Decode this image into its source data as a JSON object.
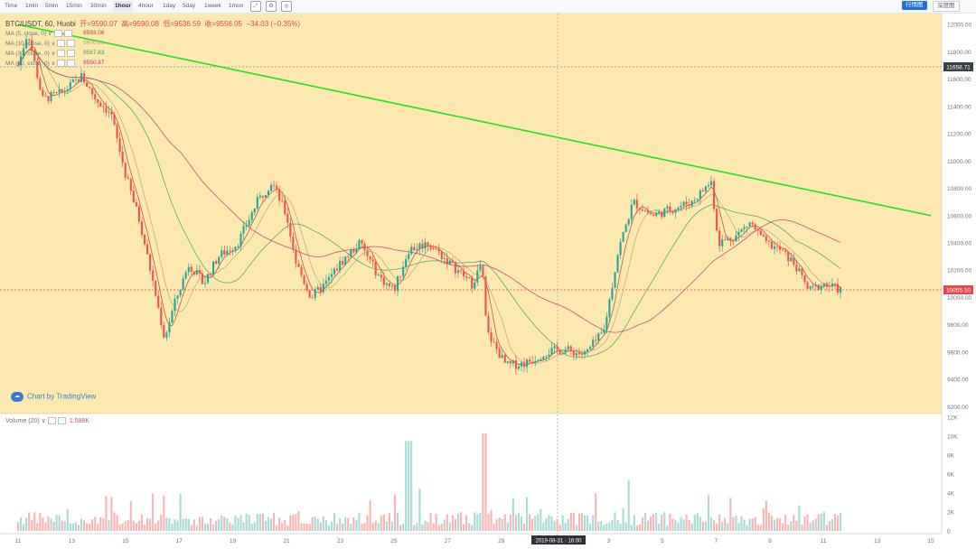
{
  "toolbar": {
    "timeframes": [
      "Time",
      "1min",
      "5min",
      "15min",
      "30min",
      "1hour",
      "4hour",
      "1day",
      "5day",
      "1week",
      "1mon"
    ],
    "active_timeframe": "1hour",
    "buttons": {
      "kline": "行情图",
      "depth": "深度图"
    },
    "icons": [
      "fullscreen-icon",
      "settings-icon",
      "screenshot-icon"
    ]
  },
  "header": {
    "symbol": "BTC/USDT, 60, Huobi",
    "open": "开=9590.07",
    "high": "高=9590.08",
    "low": "低=9536.59",
    "close": "收=9556.05",
    "change": "−34.03 (−0.35%)"
  },
  "ma_legend": [
    {
      "label": "MA (5, close, 0) ∨",
      "value": "9593.06",
      "color": "#c0392b"
    },
    {
      "label": "MA (10, close, 0) ∨",
      "value": "9600.01",
      "color": "#b9a27a"
    },
    {
      "label": "MA (30, close, 0) ∨",
      "value": "9567.83",
      "color": "#3aa05a"
    },
    {
      "label": "MA (60, close, 0) ∨",
      "value": "9550.87",
      "color": "#c0306e"
    }
  ],
  "attribution": "Chart by TradingView",
  "volume_legend": {
    "label": "Volume (20) ∨",
    "value": "1.588K"
  },
  "crosshair_label": "2019-08-31 · 16:00",
  "price_labels": {
    "marker": "11658.71",
    "current": "10055.10"
  },
  "colors": {
    "up": "#26a69a",
    "down": "#ef5350",
    "trendline": "#22e01b",
    "highlight": "#fde9b0"
  },
  "chart_data": {
    "type": "candlestick",
    "timeframe": "1hour",
    "y_range": [
      9150,
      12080
    ],
    "y_ticks": [
      12000,
      11800,
      11600,
      11400,
      11200,
      11000,
      10800,
      10600,
      10400,
      10200,
      10000,
      9800,
      9600,
      9400,
      9200
    ],
    "y_tick_labels": [
      "12000.00",
      "11800.00",
      "11600.00",
      "11400.00",
      "11200.00",
      "11000.00",
      "10800.00",
      "10600.00",
      "10400.00",
      "10200.00",
      "10000.00",
      "9800.00",
      "9600.00",
      "9400.00",
      "9200.00"
    ],
    "x_tick_labels": [
      "11",
      "13",
      "15",
      "17",
      "19",
      "21",
      "23",
      "25",
      "27",
      "29",
      "1",
      "3",
      "5",
      "7",
      "9",
      "11",
      "13",
      "15"
    ],
    "price_path": [
      {
        "x": 0,
        "y": 11700
      },
      {
        "x": 0.4,
        "y": 11950
      },
      {
        "x": 1.0,
        "y": 11450
      },
      {
        "x": 1.8,
        "y": 11500
      },
      {
        "x": 2.6,
        "y": 11620
      },
      {
        "x": 3.2,
        "y": 11450
      },
      {
        "x": 3.8,
        "y": 11350
      },
      {
        "x": 4.4,
        "y": 10900
      },
      {
        "x": 5.0,
        "y": 10550
      },
      {
        "x": 5.6,
        "y": 10050
      },
      {
        "x": 6.0,
        "y": 9700
      },
      {
        "x": 6.4,
        "y": 9950
      },
      {
        "x": 7.0,
        "y": 10250
      },
      {
        "x": 7.6,
        "y": 10100
      },
      {
        "x": 8.2,
        "y": 10300
      },
      {
        "x": 9.0,
        "y": 10400
      },
      {
        "x": 9.8,
        "y": 10700
      },
      {
        "x": 10.4,
        "y": 10850
      },
      {
        "x": 11.0,
        "y": 10600
      },
      {
        "x": 11.4,
        "y": 10250
      },
      {
        "x": 12.0,
        "y": 10000
      },
      {
        "x": 12.6,
        "y": 10100
      },
      {
        "x": 13.2,
        "y": 10250
      },
      {
        "x": 14.0,
        "y": 10400
      },
      {
        "x": 14.8,
        "y": 10150
      },
      {
        "x": 15.4,
        "y": 10050
      },
      {
        "x": 16.0,
        "y": 10350
      },
      {
        "x": 16.8,
        "y": 10400
      },
      {
        "x": 17.4,
        "y": 10300
      },
      {
        "x": 18.0,
        "y": 10200
      },
      {
        "x": 18.6,
        "y": 10100
      },
      {
        "x": 19.0,
        "y": 10250
      },
      {
        "x": 19.2,
        "y": 9750
      },
      {
        "x": 20.0,
        "y": 9500
      },
      {
        "x": 20.8,
        "y": 9520
      },
      {
        "x": 21.6,
        "y": 9600
      },
      {
        "x": 22.4,
        "y": 9620
      },
      {
        "x": 23.2,
        "y": 9580
      },
      {
        "x": 24.0,
        "y": 9750
      },
      {
        "x": 24.6,
        "y": 10350
      },
      {
        "x": 25.2,
        "y": 10700
      },
      {
        "x": 26.0,
        "y": 10600
      },
      {
        "x": 26.8,
        "y": 10650
      },
      {
        "x": 27.6,
        "y": 10700
      },
      {
        "x": 28.4,
        "y": 10850
      },
      {
        "x": 28.7,
        "y": 10400
      },
      {
        "x": 29.4,
        "y": 10450
      },
      {
        "x": 30.0,
        "y": 10550
      },
      {
        "x": 30.6,
        "y": 10400
      },
      {
        "x": 31.2,
        "y": 10350
      },
      {
        "x": 31.8,
        "y": 10250
      },
      {
        "x": 32.4,
        "y": 10050
      },
      {
        "x": 33.0,
        "y": 10100
      },
      {
        "x": 33.7,
        "y": 10055
      }
    ],
    "trendline": {
      "x1": 0,
      "y1": 12000,
      "x2": 37.4,
      "y2": 10600
    },
    "volume": {
      "y_range": [
        0,
        12000
      ],
      "y_tick_labels": [
        "12K",
        "10K",
        "8K",
        "6K",
        "4K",
        "2K",
        "0"
      ]
    }
  }
}
